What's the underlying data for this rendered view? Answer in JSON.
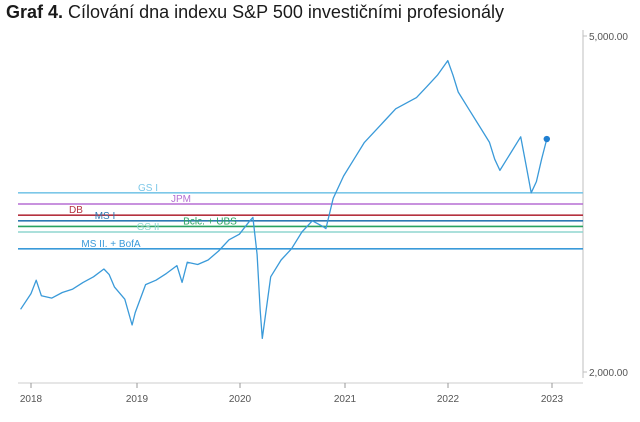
{
  "title": {
    "prefix": "Graf 4.",
    "text": "Cílování dna indexu S&P 500 investičními profesionály"
  },
  "chart_data": {
    "type": "line",
    "title": "Graf 4. Cílování dna indexu S&P 500 investičními profesionály",
    "xlabel": "",
    "ylabel": "",
    "x_ticks": [
      "2018",
      "2019",
      "2020",
      "2021",
      "2022",
      "2023"
    ],
    "y_ticks": [
      "5,000.00",
      "2,000.00"
    ],
    "ylim": [
      2000,
      5000
    ],
    "series": [
      {
        "name": "S&P 500",
        "color": "#3a9ad9",
        "x": [
          2017.9,
          2018.0,
          2018.05,
          2018.1,
          2018.2,
          2018.3,
          2018.4,
          2018.5,
          2018.6,
          2018.7,
          2018.75,
          2018.8,
          2018.9,
          2018.97,
          2019.0,
          2019.1,
          2019.2,
          2019.3,
          2019.4,
          2019.45,
          2019.5,
          2019.6,
          2019.7,
          2019.8,
          2019.9,
          2020.0,
          2020.1,
          2020.13,
          2020.17,
          2020.2,
          2020.22,
          2020.3,
          2020.4,
          2020.5,
          2020.6,
          2020.7,
          2020.8,
          2020.83,
          2020.9,
          2021.0,
          2021.1,
          2021.2,
          2021.3,
          2021.4,
          2021.5,
          2021.6,
          2021.7,
          2021.8,
          2021.9,
          2022.0,
          2022.05,
          2022.1,
          2022.2,
          2022.3,
          2022.4,
          2022.45,
          2022.5,
          2022.6,
          2022.7,
          2022.75,
          2022.8,
          2022.85,
          2022.9,
          2022.95
        ],
        "values": [
          2560,
          2700,
          2820,
          2680,
          2660,
          2710,
          2740,
          2800,
          2850,
          2920,
          2870,
          2760,
          2650,
          2420,
          2530,
          2780,
          2820,
          2880,
          2950,
          2800,
          2980,
          2960,
          3000,
          3080,
          3180,
          3230,
          3350,
          3380,
          3050,
          2550,
          2300,
          2850,
          3000,
          3100,
          3250,
          3350,
          3300,
          3280,
          3550,
          3750,
          3900,
          4050,
          4150,
          4250,
          4350,
          4400,
          4450,
          4550,
          4650,
          4780,
          4650,
          4500,
          4350,
          4200,
          4050,
          3900,
          3800,
          3950,
          4100,
          3850,
          3600,
          3700,
          3900,
          4080
        ]
      }
    ],
    "levels": [
      {
        "label": "GS I",
        "value": 3600,
        "color": "#7cc7e8"
      },
      {
        "label": "JPM",
        "value": 3500,
        "color": "#b56fd3"
      },
      {
        "label": "DB",
        "value": 3400,
        "color": "#b5313f"
      },
      {
        "label": "MS I",
        "value": 3350,
        "color": "#2e79b3"
      },
      {
        "label": "Bclс. + UBS",
        "value": 3300,
        "color": "#2aa361"
      },
      {
        "label": "GS II",
        "value": 3250,
        "color": "#8fd6cf"
      },
      {
        "label": "MS II. + BofA",
        "value": 3100,
        "color": "#3a9ad9"
      }
    ]
  }
}
